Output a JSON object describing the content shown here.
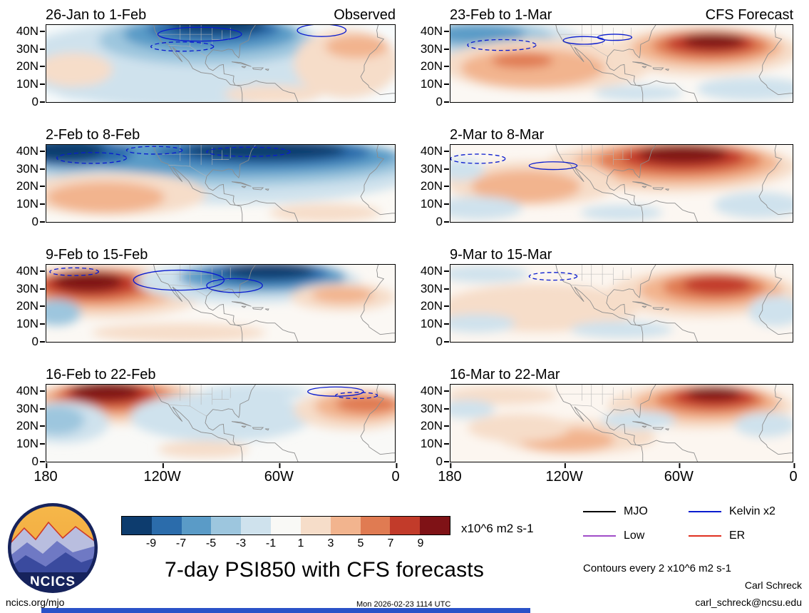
{
  "chart_data": {
    "type": "heatmap",
    "title": "7-day PSI850 with CFS forecasts",
    "units": "x10^6 m2 s-1",
    "contour_note": "Contours every 2 x10^6 m2 s-1",
    "column_headers": [
      "Observed",
      "CFS Forecast"
    ],
    "x_ticks": [
      "180",
      "120W",
      "60W",
      "0"
    ],
    "y_ticks": [
      "40N",
      "30N",
      "20N",
      "10N",
      "0"
    ],
    "lon_range_deg_w": [
      180,
      0
    ],
    "lat_range_deg_n": [
      0,
      44
    ],
    "colorbar": {
      "tick_labels": [
        "-9",
        "-7",
        "-5",
        "-3",
        "-1",
        "1",
        "3",
        "5",
        "7",
        "9"
      ],
      "colors": [
        "#0d3c6e",
        "#2b6cab",
        "#5a9bc7",
        "#9dc6de",
        "#cfe2ed",
        "#f9f9f6",
        "#f6ddc9",
        "#f2b48e",
        "#e07b52",
        "#c23b2a",
        "#7f1216"
      ]
    },
    "legend": [
      {
        "label": "MJO",
        "color": "#000000"
      },
      {
        "label": "Kelvin x2",
        "color": "#0a1ccf"
      },
      {
        "label": "Low",
        "color": "#a04dc8"
      },
      {
        "label": "ER",
        "color": "#e03020"
      }
    ],
    "panels": [
      {
        "title": "26-Jan to 1-Feb",
        "corner": "Observed",
        "bg": "#f7fafb",
        "blobs": [
          [
            40,
            50,
            50,
            58,
            4
          ],
          [
            46,
            20,
            31,
            32,
            3
          ],
          [
            47,
            12,
            25,
            24,
            2
          ],
          [
            48,
            5,
            19,
            17,
            1
          ],
          [
            49,
            0,
            14,
            12,
            0
          ],
          [
            8,
            58,
            11,
            22,
            6
          ],
          [
            86,
            50,
            15,
            45,
            6
          ],
          [
            89,
            28,
            9,
            15,
            7
          ],
          [
            65,
            90,
            14,
            12,
            6
          ],
          [
            15,
            88,
            12,
            10,
            4
          ]
        ],
        "contours": [
          [
            44,
            12,
            12,
            9,
            0
          ],
          [
            39,
            28,
            9,
            6,
            1
          ],
          [
            79,
            7,
            7,
            8,
            0
          ]
        ]
      },
      {
        "title": "23-Feb to 1-Mar",
        "corner": "CFS Forecast",
        "bg": "#fbf8f4",
        "blobs": [
          [
            14,
            22,
            25,
            26,
            4
          ],
          [
            11,
            16,
            19,
            18,
            3
          ],
          [
            8,
            11,
            14,
            13,
            2
          ],
          [
            28,
            52,
            31,
            34,
            6
          ],
          [
            24,
            56,
            21,
            25,
            7
          ],
          [
            21,
            46,
            9,
            10,
            8
          ],
          [
            74,
            34,
            28,
            32,
            6
          ],
          [
            75,
            30,
            22,
            24,
            7
          ],
          [
            76,
            27,
            17,
            19,
            8
          ],
          [
            76,
            24,
            13,
            14,
            9
          ],
          [
            77,
            21,
            9,
            10,
            10
          ],
          [
            88,
            83,
            16,
            15,
            4
          ],
          [
            55,
            88,
            13,
            10,
            4
          ]
        ],
        "contours": [
          [
            15,
            26,
            10,
            7,
            1
          ],
          [
            39,
            20,
            6,
            5,
            0
          ],
          [
            48,
            16,
            5,
            4,
            0
          ]
        ]
      },
      {
        "title": "2-Feb to 8-Feb",
        "bg": "#fbf9f5",
        "blobs": [
          [
            50,
            32,
            58,
            45,
            4
          ],
          [
            50,
            22,
            56,
            32,
            3
          ],
          [
            55,
            15,
            46,
            25,
            2
          ],
          [
            62,
            10,
            31,
            18,
            1
          ],
          [
            63,
            7,
            23,
            13,
            0
          ],
          [
            8,
            10,
            17,
            19,
            1
          ],
          [
            5,
            7,
            12,
            14,
            0
          ],
          [
            19,
            64,
            27,
            28,
            6
          ],
          [
            17,
            68,
            17,
            20,
            7
          ],
          [
            80,
            88,
            16,
            12,
            6
          ]
        ],
        "contours": [
          [
            13,
            17,
            10,
            7,
            1
          ],
          [
            31,
            7,
            8,
            5,
            1
          ],
          [
            58,
            9,
            12,
            6,
            1
          ]
        ]
      },
      {
        "title": "2-Mar to 8-Mar",
        "bg": "#fcf7f2",
        "blobs": [
          [
            64,
            28,
            37,
            34,
            6
          ],
          [
            66,
            24,
            30,
            28,
            7
          ],
          [
            67,
            20,
            24,
            22,
            8
          ],
          [
            68,
            16,
            18,
            17,
            9
          ],
          [
            68,
            12,
            13,
            12,
            10
          ],
          [
            24,
            50,
            25,
            29,
            6
          ],
          [
            22,
            54,
            16,
            21,
            7
          ],
          [
            8,
            82,
            13,
            15,
            4
          ],
          [
            3,
            32,
            7,
            14,
            4
          ],
          [
            90,
            78,
            13,
            17,
            4
          ],
          [
            50,
            88,
            12,
            10,
            4
          ]
        ],
        "contours": [
          [
            8,
            18,
            8,
            6,
            1
          ],
          [
            30,
            27,
            7,
            5,
            0
          ]
        ]
      },
      {
        "title": "9-Feb to 15-Feb",
        "bg": "#fbf8f4",
        "blobs": [
          [
            17,
            35,
            29,
            34,
            6
          ],
          [
            16,
            31,
            23,
            27,
            7
          ],
          [
            14,
            28,
            18,
            22,
            8
          ],
          [
            13,
            25,
            14,
            17,
            9
          ],
          [
            12,
            22,
            10,
            13,
            10
          ],
          [
            58,
            22,
            32,
            28,
            4
          ],
          [
            62,
            16,
            24,
            20,
            2
          ],
          [
            63,
            11,
            18,
            15,
            1
          ],
          [
            64,
            8,
            13,
            11,
            0
          ],
          [
            85,
            42,
            15,
            18,
            6
          ],
          [
            85,
            39,
            9,
            11,
            7
          ],
          [
            3,
            62,
            7,
            17,
            3
          ],
          [
            38,
            88,
            25,
            12,
            6
          ]
        ],
        "contours": [
          [
            38,
            20,
            13,
            13,
            0
          ],
          [
            54,
            27,
            8,
            9,
            0
          ],
          [
            8,
            9,
            7,
            5,
            1
          ]
        ]
      },
      {
        "title": "9-Mar to 15-Mar",
        "bg": "#fcf6f0",
        "blobs": [
          [
            74,
            37,
            28,
            31,
            6
          ],
          [
            76,
            33,
            21,
            24,
            7
          ],
          [
            77,
            29,
            15,
            18,
            8
          ],
          [
            78,
            26,
            10,
            12,
            9
          ],
          [
            26,
            56,
            29,
            31,
            6
          ],
          [
            10,
            12,
            13,
            11,
            4
          ],
          [
            8,
            76,
            11,
            12,
            4
          ],
          [
            50,
            84,
            15,
            11,
            4
          ],
          [
            95,
            60,
            8,
            20,
            4
          ]
        ],
        "contours": [
          [
            30,
            15,
            7,
            5,
            1
          ]
        ]
      },
      {
        "title": "16-Feb to 22-Feb",
        "bg": "#f9f9f7",
        "blobs": [
          [
            21,
            23,
            27,
            29,
            6
          ],
          [
            20,
            19,
            22,
            24,
            7
          ],
          [
            19,
            16,
            17,
            20,
            8
          ],
          [
            18,
            12,
            13,
            16,
            9
          ],
          [
            17,
            9,
            10,
            12,
            10
          ],
          [
            5,
            49,
            13,
            27,
            4
          ],
          [
            3,
            46,
            8,
            19,
            3
          ],
          [
            50,
            42,
            26,
            32,
            4
          ],
          [
            45,
            84,
            13,
            11,
            6
          ],
          [
            88,
            33,
            17,
            26,
            6
          ],
          [
            90,
            28,
            13,
            19,
            7
          ],
          [
            92,
            25,
            9,
            12,
            8
          ],
          [
            60,
            10,
            15,
            11,
            4
          ]
        ],
        "contours": [
          [
            83,
            9,
            8,
            6,
            0
          ],
          [
            89,
            14,
            6,
            4,
            1
          ]
        ]
      },
      {
        "title": "16-Mar to 22-Mar",
        "bg": "#fcf6f0",
        "blobs": [
          [
            73,
            28,
            27,
            29,
            6
          ],
          [
            75,
            24,
            21,
            23,
            7
          ],
          [
            76,
            20,
            16,
            18,
            8
          ],
          [
            77,
            16,
            12,
            14,
            9
          ],
          [
            77,
            12,
            8,
            9,
            10
          ],
          [
            37,
            68,
            23,
            22,
            6
          ],
          [
            34,
            72,
            14,
            15,
            7
          ],
          [
            20,
            56,
            15,
            18,
            6
          ],
          [
            15,
            14,
            16,
            12,
            6
          ],
          [
            55,
            46,
            11,
            12,
            4
          ],
          [
            92,
            52,
            9,
            16,
            4
          ],
          [
            5,
            32,
            8,
            12,
            4
          ]
        ],
        "contours": []
      }
    ]
  },
  "footer": {
    "logo_text": "NCICS",
    "author": "Carl Schreck",
    "email": "carl_schreck@ncsu.edu",
    "website": "ncics.org/mjo",
    "timestamp": "Mon 2026-02-23 1114 UTC"
  }
}
